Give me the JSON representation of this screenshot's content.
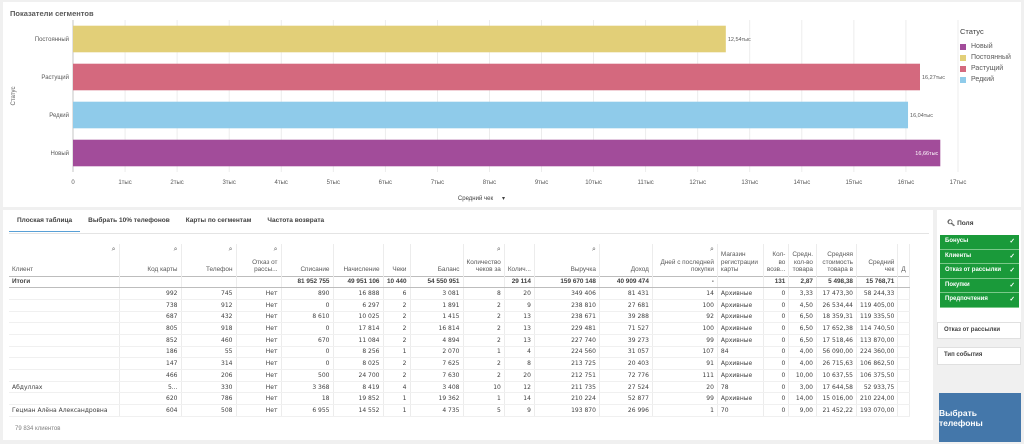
{
  "chart": {
    "title": "Показатели сегментов",
    "y_axis_label": "Статус",
    "x_axis_label": "Средний чек",
    "x_axis_dropdown_icon": "caret-down-icon",
    "legend_title": "Статус"
  },
  "chart_data": {
    "type": "bar",
    "orientation": "horizontal",
    "categories": [
      "Постоянный",
      "Растущий",
      "Редкий",
      "Новый"
    ],
    "values": [
      12540,
      16270,
      16040,
      16660
    ],
    "value_labels": [
      "12,54тыс",
      "16,27тыс",
      "16,04тыс",
      "16,66тыс"
    ],
    "colors": [
      "#e2cf78",
      "#d4697e",
      "#8fcbea",
      "#a24c9a"
    ],
    "xlim": [
      0,
      17000
    ],
    "x_ticks": [
      0,
      1000,
      2000,
      3000,
      4000,
      5000,
      6000,
      7000,
      8000,
      9000,
      10000,
      11000,
      12000,
      13000,
      14000,
      15000,
      16000,
      17000
    ],
    "x_tick_labels": [
      "0",
      "1тыс",
      "2тыс",
      "3тыс",
      "4тыс",
      "5тыс",
      "6тыс",
      "7тыс",
      "8тыс",
      "9тыс",
      "10тыс",
      "11тыс",
      "12тыс",
      "13тыс",
      "14тыс",
      "15тыс",
      "16тыс",
      "17тыс"
    ],
    "legend": [
      {
        "name": "Новый",
        "color": "#a24c9a"
      },
      {
        "name": "Постоянный",
        "color": "#e2cf78"
      },
      {
        "name": "Растущий",
        "color": "#d4697e"
      },
      {
        "name": "Редкий",
        "color": "#8fcbea"
      }
    ],
    "legend_placement": "right",
    "grid": true
  },
  "tabs": [
    {
      "label": "Плоская таблица",
      "active": true
    },
    {
      "label": "Выбрать 10% телефонов",
      "active": false
    },
    {
      "label": "Карты по сегментам",
      "active": false
    },
    {
      "label": "Частота возврата",
      "active": false
    }
  ],
  "table": {
    "columns": [
      "Клиент",
      "Код карты",
      "Телефон",
      "Отказ от рассы...",
      "Списание",
      "Начисление",
      "Чеки",
      "Баланс",
      "Количество чеков за",
      "Колич...",
      "Выручка",
      "Доход",
      "Дней с последней покупки",
      "Магазин регистрации карты",
      "Кол-во возв...",
      "Средн. кол-во товара",
      "Средняя стоимость товара в",
      "Средний чек",
      "Д"
    ],
    "totals": [
      "Итоги",
      "",
      "",
      "",
      "81 952 755",
      "49 951 106",
      "10 440",
      "54 550 951",
      "",
      "29 114",
      "159 670 148",
      "40 909 474",
      "-",
      "",
      "131",
      "2,87",
      "5 498,38",
      "15 768,71",
      ""
    ],
    "rows": [
      [
        "",
        "992",
        "745",
        "Нет",
        "890",
        "16 888",
        "6",
        "3 081",
        "8",
        "20",
        "349 406",
        "81 431",
        "14",
        "Архивные",
        "0",
        "3,33",
        "17 473,30",
        "58 244,33",
        ""
      ],
      [
        "",
        "738",
        "912",
        "Нет",
        "0",
        "6 297",
        "2",
        "1 891",
        "2",
        "9",
        "238 810",
        "27 681",
        "100",
        "Архивные",
        "0",
        "4,50",
        "26 534,44",
        "119 405,00",
        ""
      ],
      [
        "",
        "687",
        "432",
        "Нет",
        "8 610",
        "10 025",
        "2",
        "1 415",
        "2",
        "13",
        "238 671",
        "39 288",
        "92",
        "Архивные",
        "0",
        "6,50",
        "18 359,31",
        "119 335,50",
        ""
      ],
      [
        "",
        "805",
        "918",
        "Нет",
        "0",
        "17 814",
        "2",
        "16 814",
        "2",
        "13",
        "229 481",
        "71 527",
        "100",
        "Архивные",
        "0",
        "6,50",
        "17 652,38",
        "114 740,50",
        ""
      ],
      [
        "",
        "852",
        "460",
        "Нет",
        "670",
        "11 084",
        "2",
        "4 894",
        "2",
        "13",
        "227 740",
        "39 273",
        "99",
        "Архивные",
        "0",
        "6,50",
        "17 518,46",
        "113 870,00",
        ""
      ],
      [
        "",
        "186",
        "55",
        "Нет",
        "0",
        "8 256",
        "1",
        "2 070",
        "1",
        "4",
        "224 560",
        "31 057",
        "107",
        "84",
        "0",
        "4,00",
        "56 090,00",
        "224 360,00",
        ""
      ],
      [
        "",
        "147",
        "314",
        "Нет",
        "0",
        "8 025",
        "2",
        "7 625",
        "2",
        "8",
        "213 725",
        "20 403",
        "91",
        "Архивные",
        "0",
        "4,00",
        "26 715,63",
        "106 862,50",
        ""
      ],
      [
        "",
        "466",
        "206",
        "Нет",
        "500",
        "24 700",
        "2",
        "7 630",
        "2",
        "20",
        "212 751",
        "72 776",
        "111",
        "Архивные",
        "0",
        "10,00",
        "10 637,55",
        "106 375,50",
        ""
      ],
      [
        "Абдуллах",
        "5...",
        "330",
        "Нет",
        "3 368",
        "8 419",
        "4",
        "3 408",
        "10",
        "12",
        "211 735",
        "27 524",
        "20",
        "78",
        "0",
        "3,00",
        "17 644,58",
        "52 933,75",
        ""
      ],
      [
        "",
        "620",
        "786",
        "Нет",
        "18",
        "19 852",
        "1",
        "19 362",
        "1",
        "14",
        "210 224",
        "52 877",
        "99",
        "Архивные",
        "0",
        "14,00",
        "15 016,00",
        "210 224,00",
        ""
      ],
      [
        "Гецман Алёна Александровна",
        "604",
        "508",
        "Нет",
        "6 955",
        "14 552",
        "1",
        "4 735",
        "5",
        "9",
        "193 870",
        "26 996",
        "1",
        "70",
        "0",
        "9,00",
        "21 452,22",
        "193 070,00",
        ""
      ]
    ],
    "footer_count": "79 834 клиентов"
  },
  "filters": {
    "search_label": "Поля",
    "items": [
      {
        "label": "Бонусы",
        "checked": true
      },
      {
        "label": "Клиенты",
        "checked": true
      },
      {
        "label": "Отказ от рассылки",
        "checked": true
      },
      {
        "label": "Покупки",
        "checked": true
      },
      {
        "label": "Предпочтения",
        "checked": true
      }
    ],
    "refusal_label": "Отказ от рассылки",
    "event_label": "Тип события"
  },
  "cta_label": "Выбрать телефоны"
}
